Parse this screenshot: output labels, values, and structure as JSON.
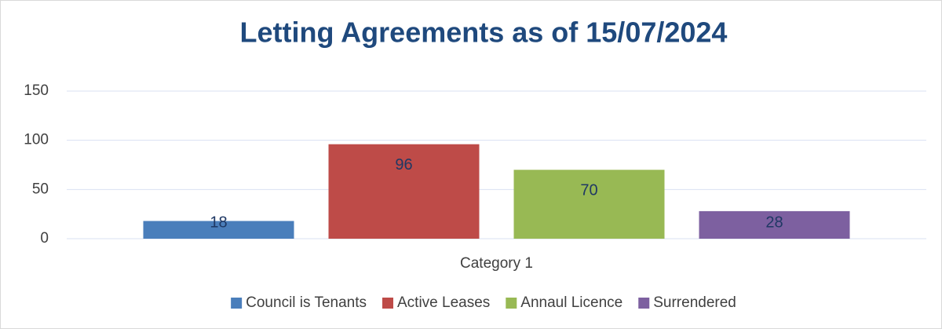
{
  "chart_data": {
    "type": "bar",
    "title": "Letting Agreements as of 15/07/2024",
    "categories": [
      "Category 1"
    ],
    "series": [
      {
        "name": "Council is Tenants",
        "color": "#4a7ebb",
        "values": [
          18
        ]
      },
      {
        "name": "Active Leases",
        "color": "#be4b48",
        "values": [
          96
        ]
      },
      {
        "name": "Annaul Licence",
        "color": "#98b954",
        "values": [
          70
        ]
      },
      {
        "name": "Surrendered",
        "color": "#7d60a0",
        "values": [
          28
        ]
      }
    ],
    "ylim": [
      0,
      150
    ],
    "yticks": [
      0,
      50,
      100,
      150
    ],
    "grid": true,
    "legend": "bottom"
  }
}
